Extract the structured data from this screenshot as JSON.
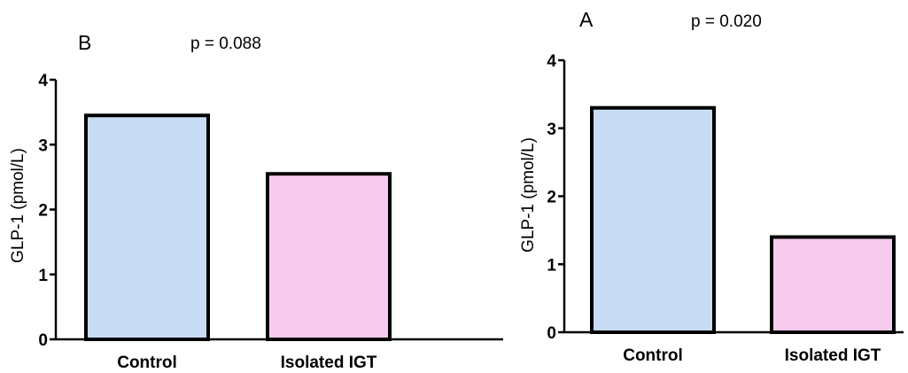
{
  "chart_data": [
    {
      "type": "bar",
      "panel": "B",
      "annotation": "p = 0.088",
      "ylabel": "GLP-1 (pmol/L)",
      "categories": [
        "Control",
        "Isolated IGT"
      ],
      "values": [
        3.45,
        2.55
      ],
      "colors": [
        "#c9dcf5",
        "#f7cbee"
      ],
      "ylim": [
        0,
        4
      ],
      "yticks": [
        0,
        1,
        2,
        3,
        4
      ]
    },
    {
      "type": "bar",
      "panel": "A",
      "annotation": "p = 0.020",
      "ylabel": "GLP-1 (pmol/L)",
      "categories": [
        "Control",
        "Isolated IGT"
      ],
      "values": [
        3.3,
        1.4
      ],
      "colors": [
        "#c9dcf5",
        "#f7cbee"
      ],
      "ylim": [
        0,
        4
      ],
      "yticks": [
        0,
        1,
        2,
        3,
        4
      ]
    }
  ]
}
